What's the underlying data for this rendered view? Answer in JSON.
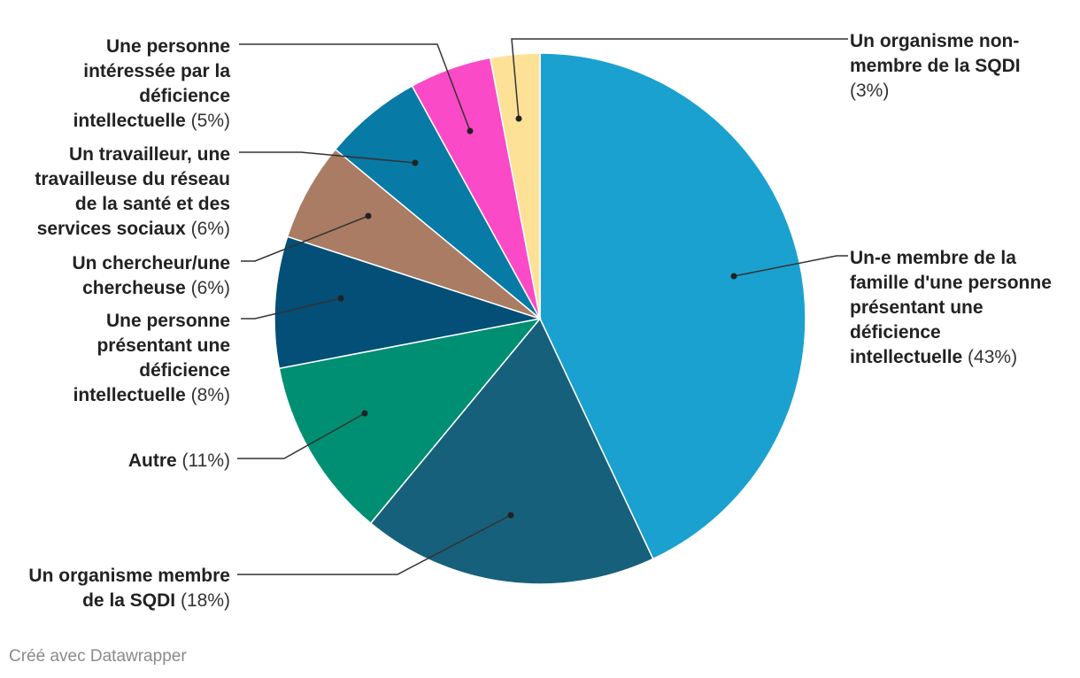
{
  "chart_data": {
    "type": "pie",
    "slices": [
      {
        "label": "Un-e membre de la famille d'une personne présentant une déficience intellectuelle",
        "value": 43,
        "pct_text": "(43%)",
        "color": "#1aa1cf"
      },
      {
        "label": "Un organisme membre de la SQDI",
        "value": 18,
        "pct_text": "(18%)",
        "color": "#17607b"
      },
      {
        "label": "Autre",
        "value": 11,
        "pct_text": "(11%)",
        "color": "#008f72"
      },
      {
        "label": "Une personne présentant une déficience intellectuelle",
        "value": 8,
        "pct_text": "(8%)",
        "color": "#034f77"
      },
      {
        "label": "Un chercheur/une chercheuse",
        "value": 6,
        "pct_text": "(6%)",
        "color": "#a97c63"
      },
      {
        "label": "Un travailleur, une travailleuse du réseau de la santé et des services sociaux",
        "value": 6,
        "pct_text": "(6%)",
        "color": "#087aa6"
      },
      {
        "label": "Une personne intéressée par la déficience intellectuelle",
        "value": 5,
        "pct_text": "(5%)",
        "color": "#fb4ac7"
      },
      {
        "label": "Un organisme non-membre de la SQDI",
        "value": 3,
        "pct_text": "(3%)",
        "color": "#fde197"
      }
    ]
  },
  "footer": {
    "credit": "Créé avec Datawrapper"
  }
}
